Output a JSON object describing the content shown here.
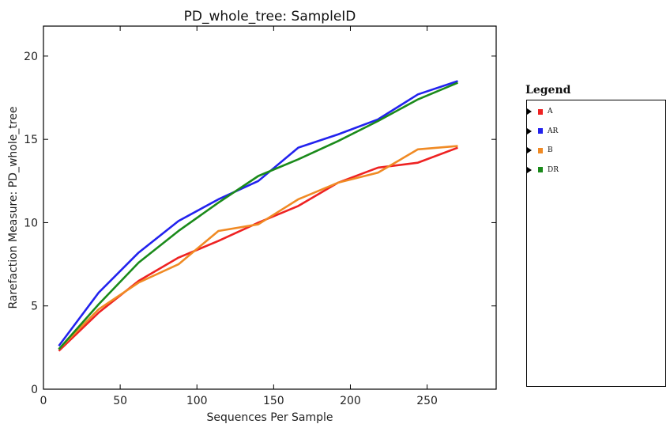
{
  "chart_data": {
    "type": "line",
    "title": "PD_whole_tree: SampleID",
    "xlabel": "Sequences Per Sample",
    "ylabel": "Rarefaction Measure: PD_whole_tree",
    "xlim": [
      0,
      295
    ],
    "ylim": [
      0,
      21.8
    ],
    "xticks": [
      0,
      50,
      100,
      150,
      200,
      250
    ],
    "yticks": [
      0,
      5,
      10,
      15,
      20
    ],
    "grid": false,
    "legend_position": "right",
    "legend_title": "Legend",
    "x": [
      10,
      36,
      62,
      88,
      114,
      140,
      166,
      192,
      218,
      244,
      270
    ],
    "series": [
      {
        "name": "A",
        "color": "#ee2222",
        "values": [
          2.3,
          4.6,
          6.5,
          7.9,
          8.9,
          10.0,
          11.0,
          12.4,
          13.3,
          13.6,
          14.5
        ]
      },
      {
        "name": "AR",
        "color": "#2222ee",
        "values": [
          2.6,
          5.8,
          8.2,
          10.1,
          11.4,
          12.5,
          14.5,
          15.3,
          16.2,
          17.7,
          18.5
        ]
      },
      {
        "name": "B",
        "color": "#f08a24",
        "values": [
          2.4,
          4.8,
          6.4,
          7.5,
          9.5,
          9.9,
          11.4,
          12.4,
          13.0,
          14.4,
          14.6
        ]
      },
      {
        "name": "DR",
        "color": "#1a8a1a",
        "values": [
          2.4,
          5.1,
          7.6,
          9.5,
          11.2,
          12.8,
          13.8,
          14.9,
          16.1,
          17.4,
          18.4
        ]
      }
    ]
  }
}
